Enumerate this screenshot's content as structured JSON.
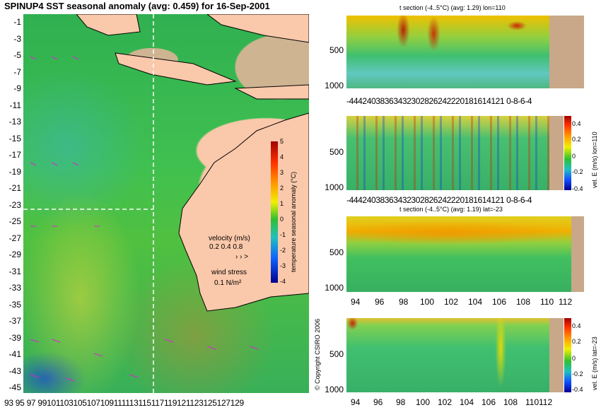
{
  "title": "SPINUP4 SST seasonal anomaly (avg: 0.459) for 16-Sep-2001",
  "map": {
    "lat_labels": [
      "-1",
      "-3",
      "-5",
      "-7",
      "-9",
      "-11",
      "-13",
      "-15",
      "-17",
      "-19",
      "-21",
      "-23",
      "-25",
      "-27",
      "-29",
      "-31",
      "-33",
      "-35",
      "-37",
      "-39",
      "-41",
      "-43",
      "-45"
    ],
    "lon_labels": [
      "93",
      "95",
      "97",
      "99",
      "101",
      "103",
      "105",
      "107",
      "109",
      "111",
      "113",
      "115",
      "117",
      "119",
      "121",
      "123",
      "125",
      "127",
      "129"
    ],
    "lon_labels_text": "93 95 97 99101103105107109111113115117119121123125127129",
    "colorbar_ticks": [
      "5",
      "4",
      "3",
      "2",
      "1",
      "0",
      "-1",
      "-2",
      "-3",
      "-4"
    ],
    "colorbar_label": "temperature seasonal anomaly (°C)",
    "velocity_label": "velocity (m/s)",
    "velocity_values": "0.2 0.4 0.8",
    "wind_label": "wind stress",
    "wind_value": "0.1 N/m²",
    "colors": {
      "land": "#fac8aa",
      "ocean_mid": "#40c050",
      "crosshair": "#ffffff",
      "vector": "#e020e0"
    }
  },
  "copyright": "© Copyright CSIRO 2006",
  "panels": [
    {
      "title": "t section (-4..5°C) (avg: 1.29) lon=110",
      "y_ticks": [
        "500",
        "1000"
      ],
      "x_ticks_text": "-44424038363432302826242220181614121 0-8-6-4"
    },
    {
      "title": "",
      "y_ticks": [
        "500",
        "1000"
      ],
      "x_ticks_text": "-44424038363432302826242220181614121 0-8-6-4",
      "colorbar_ticks": [
        "0.4",
        "0.2",
        "0",
        "-0.2",
        "-0.4"
      ],
      "colorbar_label": "vel. E (m/s) lon=110"
    },
    {
      "title": "t section (-4..5°C) (avg: 1.19) lat=-23",
      "y_ticks": [
        "500",
        "1000"
      ],
      "x_ticks": [
        "94",
        "96",
        "98",
        "100",
        "102",
        "104",
        "106",
        "108",
        "110",
        "112"
      ]
    },
    {
      "title": "",
      "y_ticks": [
        "500",
        "1000"
      ],
      "x_ticks": [
        "94",
        "96",
        "98",
        "100",
        "102",
        "104",
        "106",
        "108",
        "110",
        "112"
      ],
      "colorbar_ticks": [
        "0.4",
        "0.2",
        "0",
        "-0.2",
        "-0.4"
      ],
      "colorbar_label": "vel. E (m/s) lat=-23"
    }
  ]
}
